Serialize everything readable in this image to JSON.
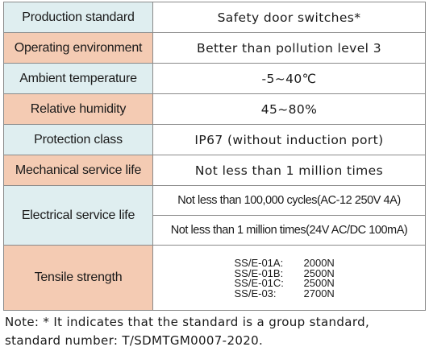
{
  "colors": {
    "teal_label_bg": "#dfeef0",
    "salmon_label_bg": "#f4cbb3",
    "border": "#8a8a8a"
  },
  "rows": [
    {
      "label": "Production standard",
      "value": "Safety door switches*",
      "label_color": "teal"
    },
    {
      "label": "Operating environment",
      "value": "Better than pollution level 3",
      "label_color": "salmon"
    },
    {
      "label": "Ambient temperature",
      "value": "-5~40℃",
      "label_color": "teal"
    },
    {
      "label": "Relative humidity",
      "value": "45~80%",
      "label_color": "salmon"
    },
    {
      "label": "Protection class",
      "value": "IP67 (without induction port)",
      "label_color": "teal"
    },
    {
      "label": "Mechanical service life",
      "value": "Not less than 1 million times",
      "label_color": "salmon"
    }
  ],
  "electrical": {
    "label": "Electrical service life",
    "label_color": "teal",
    "values": [
      "Not less than 100,000 cycles(AC-12 250V 4A)",
      "Not less than 1 million times(24V AC/DC 100mA)"
    ]
  },
  "tensile": {
    "label": "Tensile strength",
    "label_color": "salmon",
    "items": [
      {
        "model": "SS/E-01A:",
        "value": "2000N"
      },
      {
        "model": "SS/E-01B:",
        "value": "2500N"
      },
      {
        "model": "SS/E-01C:",
        "value": "2500N"
      },
      {
        "model": "SS/E-03:",
        "value": "2700N"
      }
    ]
  },
  "note": {
    "line1": "Note: * It indicates that the standard is a group standard,",
    "line2": "standard number: T/SDMTGM0007-2020."
  }
}
